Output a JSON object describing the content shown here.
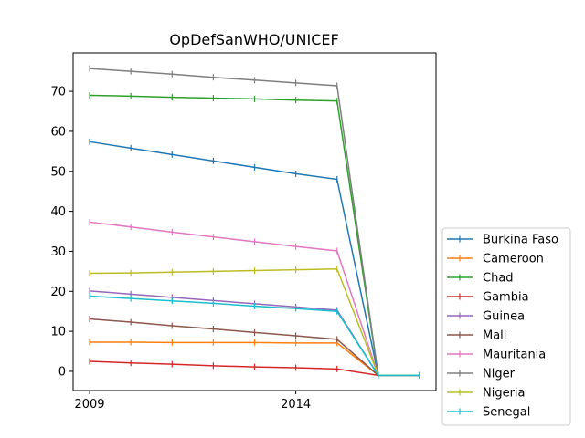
{
  "chart_data": {
    "type": "line",
    "title": "OpDefSanWHO/UNICEF",
    "xlabel": "",
    "ylabel": "",
    "x": [
      2009,
      2010,
      2011,
      2012,
      2013,
      2014,
      2015,
      2016,
      2017
    ],
    "xticks": [
      2009,
      2014
    ],
    "yticks": [
      0,
      10,
      20,
      30,
      40,
      50,
      60,
      70
    ],
    "xlim": [
      2008.6,
      2017.4
    ],
    "ylim": [
      -4.8,
      79.6
    ],
    "grid": false,
    "legend_position": "right-bottom",
    "series": [
      {
        "name": "Burkina Faso",
        "color": "#1f77b4",
        "values": [
          57.4,
          55.8,
          54.2,
          52.6,
          51.0,
          49.4,
          48.0,
          -1,
          -1
        ]
      },
      {
        "name": "Cameroon",
        "color": "#ff7f0e",
        "values": [
          7.3,
          7.3,
          7.2,
          7.2,
          7.2,
          7.1,
          7.1,
          -1,
          -1
        ]
      },
      {
        "name": "Chad",
        "color": "#2ca02c",
        "values": [
          69.0,
          68.8,
          68.5,
          68.3,
          68.1,
          67.8,
          67.6,
          -1,
          -1
        ]
      },
      {
        "name": "Gambia",
        "color": "#d62728",
        "values": [
          2.5,
          2.1,
          1.8,
          1.4,
          1.1,
          0.9,
          0.6,
          -1,
          -1
        ]
      },
      {
        "name": "Guinea",
        "color": "#9467bd",
        "values": [
          20.1,
          19.3,
          18.5,
          17.7,
          16.9,
          16.1,
          15.3,
          -1,
          -1
        ]
      },
      {
        "name": "Mali",
        "color": "#8c564b",
        "values": [
          13.1,
          12.3,
          11.4,
          10.6,
          9.7,
          8.9,
          8.0,
          -1,
          -1
        ]
      },
      {
        "name": "Mauritania",
        "color": "#e377c2",
        "values": [
          37.3,
          36.1,
          34.8,
          33.6,
          32.4,
          31.2,
          30.1,
          -1,
          -1
        ]
      },
      {
        "name": "Niger",
        "color": "#7f7f7f",
        "values": [
          75.7,
          75.0,
          74.3,
          73.5,
          72.8,
          72.1,
          71.4,
          -1,
          -1
        ]
      },
      {
        "name": "Nigeria",
        "color": "#bcbd22",
        "values": [
          24.5,
          24.6,
          24.8,
          25.0,
          25.2,
          25.4,
          25.6,
          -1,
          -1
        ]
      },
      {
        "name": "Senegal",
        "color": "#17becf",
        "values": [
          18.8,
          18.2,
          17.6,
          17.0,
          16.3,
          15.7,
          15.0,
          -1,
          -1
        ]
      }
    ]
  }
}
